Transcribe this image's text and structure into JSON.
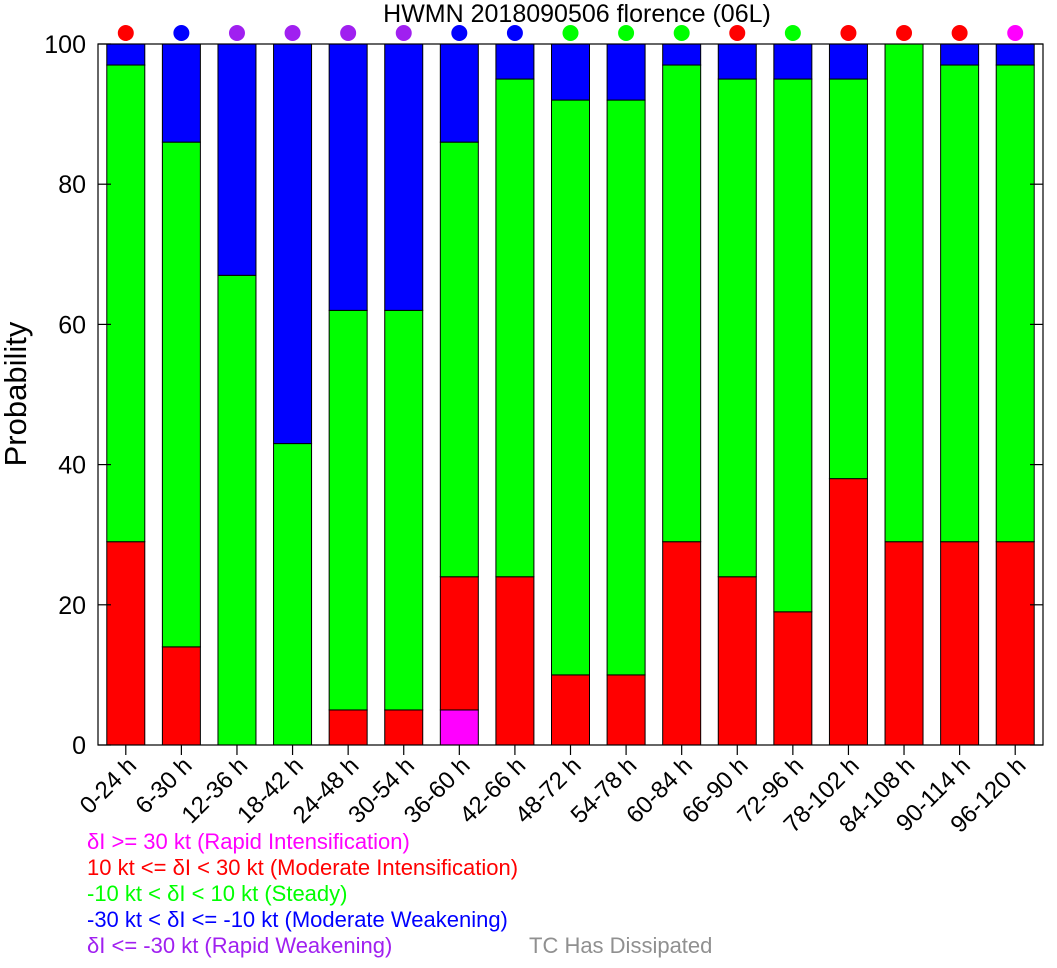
{
  "chart_data": {
    "type": "bar",
    "stacked": true,
    "title": "HWMN 2018090506 florence (06L)",
    "xlabel": "",
    "ylabel": "Probability",
    "ylim": [
      0,
      100
    ],
    "yticks": [
      0,
      20,
      40,
      60,
      80,
      100
    ],
    "grid": false,
    "categories": [
      "0-24 h",
      "6-30 h",
      "12-36 h",
      "18-42 h",
      "24-48 h",
      "30-54 h",
      "36-60 h",
      "42-66 h",
      "48-72 h",
      "54-78 h",
      "60-84 h",
      "66-90 h",
      "72-96 h",
      "78-102 h",
      "84-108 h",
      "90-114 h",
      "96-120 h"
    ],
    "series": [
      {
        "name": "δI >= 30 kt (Rapid Intensification)",
        "color": "#ff00ff",
        "values": [
          0,
          0,
          0,
          0,
          0,
          0,
          5,
          0,
          0,
          0,
          0,
          0,
          0,
          0,
          0,
          0,
          0
        ]
      },
      {
        "name": "10 kt <= δI < 30 kt (Moderate Intensification)",
        "color": "#ff0000",
        "values": [
          29,
          14,
          0,
          0,
          5,
          5,
          19,
          24,
          10,
          10,
          29,
          24,
          19,
          38,
          29,
          29,
          29
        ]
      },
      {
        "name": "-10 kt < δI < 10 kt (Steady)",
        "color": "#00ff00",
        "values": [
          68,
          72,
          67,
          43,
          57,
          57,
          62,
          71,
          82,
          82,
          68,
          71,
          76,
          57,
          71,
          68,
          68
        ]
      },
      {
        "name": "-30 kt < δI <= -10 kt (Moderate Weakening)",
        "color": "#0000ff",
        "values": [
          3,
          14,
          33,
          57,
          38,
          38,
          14,
          5,
          8,
          8,
          3,
          5,
          5,
          5,
          0,
          3,
          3
        ]
      },
      {
        "name": "δI <= -30 kt (Rapid Weakening)",
        "color": "#a020f0",
        "values": [
          0,
          0,
          0,
          0,
          0,
          0,
          0,
          0,
          0,
          0,
          0,
          0,
          0,
          0,
          0,
          0,
          0
        ]
      }
    ],
    "top_markers": [
      "#ff0000",
      "#0000ff",
      "#a020f0",
      "#a020f0",
      "#a020f0",
      "#a020f0",
      "#0000ff",
      "#0000ff",
      "#00ff00",
      "#00ff00",
      "#00ff00",
      "#ff0000",
      "#00ff00",
      "#ff0000",
      "#ff0000",
      "#ff0000",
      "#ff00ff"
    ],
    "extra_legend": {
      "label": "TC Has Dissipated",
      "color": "#909090"
    }
  }
}
